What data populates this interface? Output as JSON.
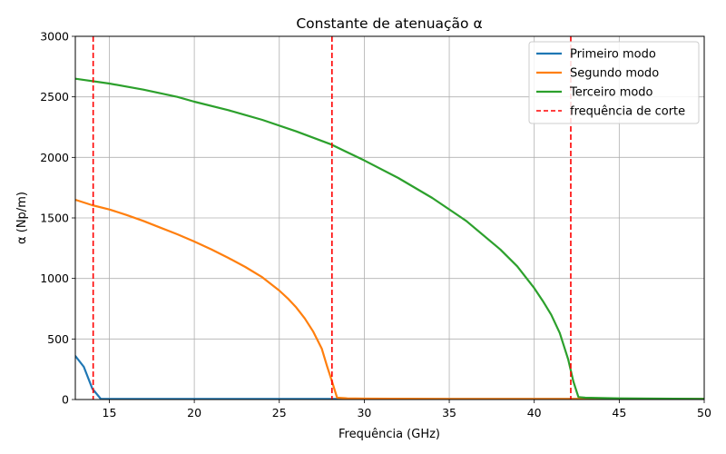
{
  "chart_data": {
    "type": "line",
    "title": "Constante de atenuação α",
    "xlabel": "Frequência (GHz)",
    "ylabel": "α (Np/m)",
    "xlim": [
      13,
      50
    ],
    "ylim": [
      0,
      3000
    ],
    "xticks": [
      15,
      20,
      25,
      30,
      35,
      40,
      45,
      50
    ],
    "yticks": [
      0,
      500,
      1000,
      1500,
      2000,
      2500,
      3000
    ],
    "grid": true,
    "legend_position": "top-right",
    "series": [
      {
        "name": "Primeiro modo",
        "color": "#1f77b4",
        "x": [
          13,
          13.5,
          14.0,
          14.5,
          15,
          20,
          25,
          30,
          35,
          40,
          45,
          50
        ],
        "y": [
          360,
          270,
          90,
          5,
          5,
          5,
          5,
          5,
          5,
          5,
          5,
          5
        ]
      },
      {
        "name": "Segundo modo",
        "color": "#ff7f0e",
        "x": [
          13,
          14,
          15,
          16,
          17,
          18,
          19,
          20,
          21,
          22,
          23,
          24,
          25,
          25.5,
          26,
          26.5,
          27,
          27.5,
          27.8,
          28.1,
          28.4,
          29,
          30,
          35,
          40,
          45,
          50
        ],
        "y": [
          1650,
          1605,
          1570,
          1525,
          1475,
          1420,
          1365,
          1305,
          1240,
          1170,
          1095,
          1010,
          900,
          835,
          760,
          670,
          560,
          420,
          280,
          150,
          15,
          10,
          8,
          5,
          5,
          5,
          5
        ],
        "smooth": true
      },
      {
        "name": "Terceiro modo",
        "color": "#2ca02c",
        "x": [
          13,
          15,
          17,
          19,
          20,
          22,
          24,
          26,
          28,
          30,
          32,
          34,
          36,
          38,
          39,
          40,
          40.5,
          41,
          41.5,
          42,
          42.3,
          42.6,
          43,
          45,
          50
        ],
        "y": [
          2650,
          2610,
          2560,
          2500,
          2460,
          2390,
          2310,
          2215,
          2110,
          1975,
          1830,
          1665,
          1475,
          1240,
          1100,
          920,
          815,
          700,
          550,
          330,
          150,
          20,
          15,
          10,
          5
        ],
        "smooth": true
      }
    ],
    "vlines": {
      "name": "frequência de corte",
      "color": "#ff0000",
      "style": "dashed",
      "x": [
        14.05,
        28.1,
        42.15
      ]
    }
  }
}
